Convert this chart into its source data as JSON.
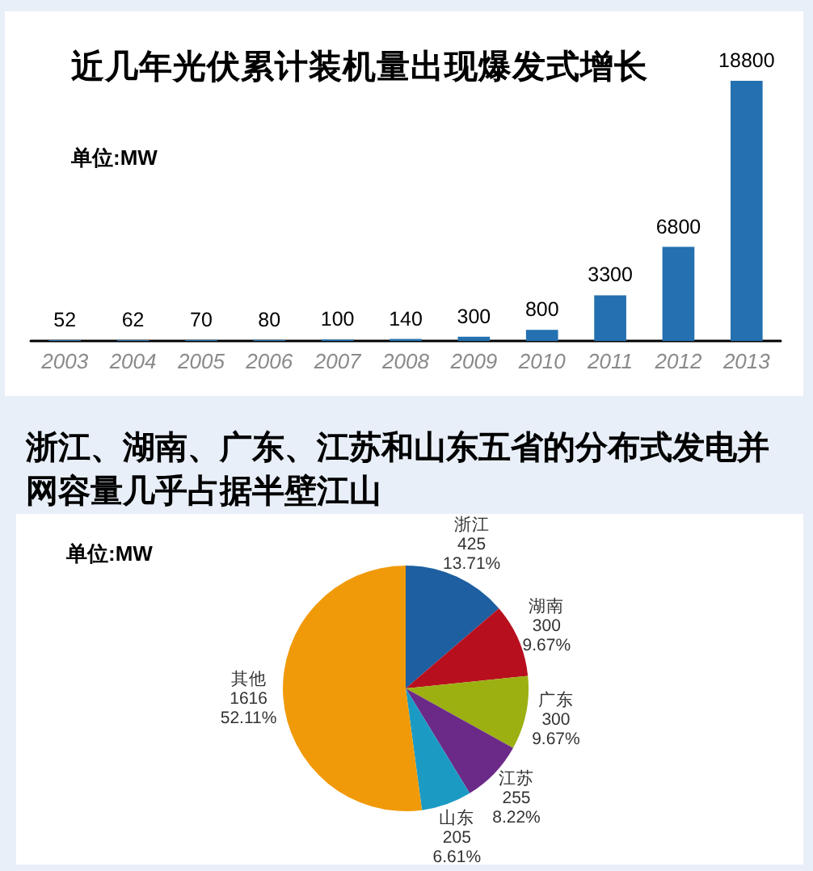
{
  "chart_data": [
    {
      "type": "bar",
      "title": "近几年光伏累计装机量出现爆发式增长",
      "annotations": [
        "单位:MW"
      ],
      "categories": [
        "2003",
        "2004",
        "2005",
        "2006",
        "2007",
        "2008",
        "2009",
        "2010",
        "2011",
        "2012",
        "2013"
      ],
      "values": [
        52,
        62,
        70,
        80,
        100,
        140,
        300,
        800,
        3300,
        6800,
        18800
      ],
      "color": "#2470b0",
      "data_labels": true
    },
    {
      "type": "pie",
      "title": "浙江、湖南、广东、江苏和山东五省的分布式发电并网容量几乎占据半壁江山",
      "annotations": [
        "单位:MW"
      ],
      "categories": [
        "浙江",
        "湖南",
        "广东",
        "江苏",
        "山东",
        "其他"
      ],
      "values": [
        425,
        300,
        300,
        255,
        205,
        1616
      ],
      "colors": [
        "#1d5fa0",
        "#b80f1e",
        "#9cb012",
        "#6b2a88",
        "#1b9bc4",
        "#f09a0a"
      ],
      "value_labels": [
        "425\n13.71%",
        "300\n9.67%",
        "300\n9.67%",
        "255\n8.22%",
        "205\n6.61%",
        "1616\n52.11%"
      ]
    }
  ]
}
